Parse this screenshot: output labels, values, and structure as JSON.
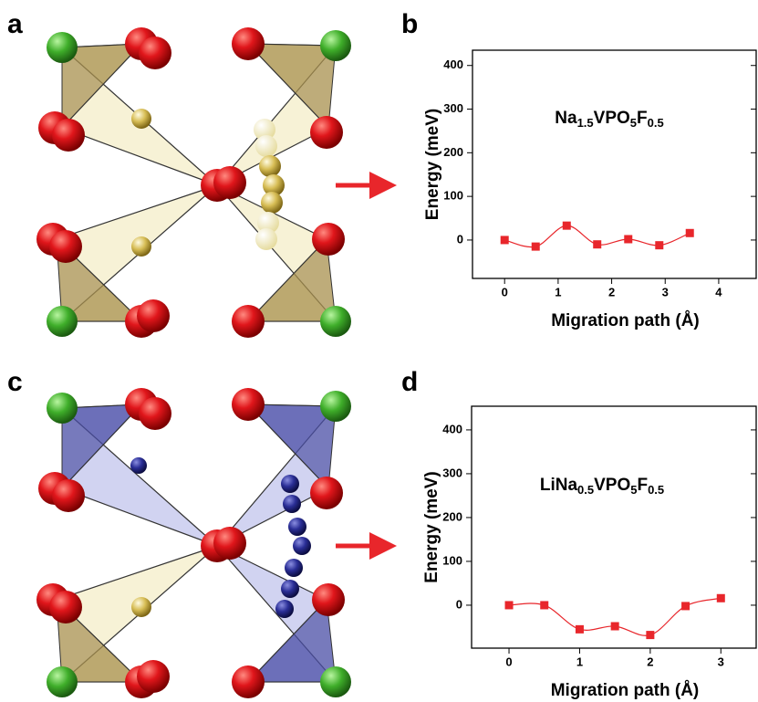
{
  "panel_labels": [
    "a",
    "b",
    "c",
    "d"
  ],
  "chart_data": [
    {
      "type": "line",
      "title": "Na1.5VPO5F0.5",
      "x_label": "Migration path (Å)",
      "y_label": "Energy (meV)",
      "x": [
        0,
        0.58,
        1.16,
        1.73,
        2.31,
        2.89,
        3.46
      ],
      "series": [
        {
          "color": "#e8262b",
          "values": [
            0,
            -15,
            33,
            -10,
            2,
            -12,
            16
          ]
        }
      ],
      "xlim": [
        -0.6,
        4.7
      ],
      "xticks": [
        0,
        1,
        2,
        3,
        4
      ],
      "ylim": [
        -88,
        435
      ],
      "yticks": [
        0,
        100,
        200,
        300,
        400
      ]
    },
    {
      "type": "line",
      "title": "LiNa0.5VPO5F0.5",
      "x_label": "Migration path (Å)",
      "y_label": "Energy (meV)",
      "x": [
        0,
        0.5,
        1,
        1.5,
        2,
        2.5,
        3
      ],
      "series": [
        {
          "color": "#e8262b",
          "values": [
            0,
            0,
            -55,
            -48,
            -68,
            -2,
            16
          ]
        }
      ],
      "xlim": [
        -0.53,
        3.5
      ],
      "xticks": [
        0,
        1,
        2,
        3
      ],
      "ylim": [
        -98,
        454
      ],
      "yticks": [
        0,
        100,
        200,
        300,
        400
      ]
    }
  ]
}
